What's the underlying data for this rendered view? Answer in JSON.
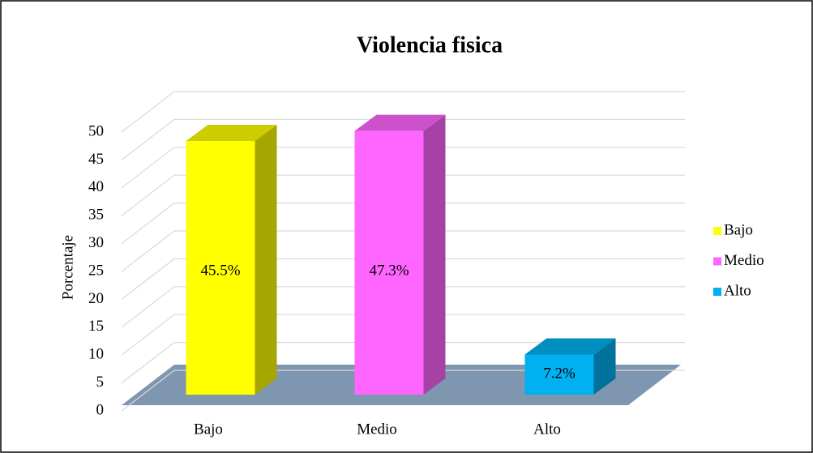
{
  "chart_data": {
    "type": "bar3d",
    "title": "Violencia fisica",
    "y_label": "Porcentaje",
    "categories": [
      "Bajo",
      "Medio",
      "Alto"
    ],
    "values": [
      45.5,
      47.3,
      7.2
    ],
    "value_labels": [
      "45.5%",
      "47.3%",
      "7.2%"
    ],
    "colors": [
      "#ffff00",
      "#ff66ff",
      "#00b0f0"
    ],
    "ylim": [
      0,
      50
    ],
    "yticks": [
      0,
      5,
      10,
      15,
      20,
      25,
      30,
      35,
      40,
      45,
      50
    ],
    "grid": true,
    "legend": "right"
  }
}
